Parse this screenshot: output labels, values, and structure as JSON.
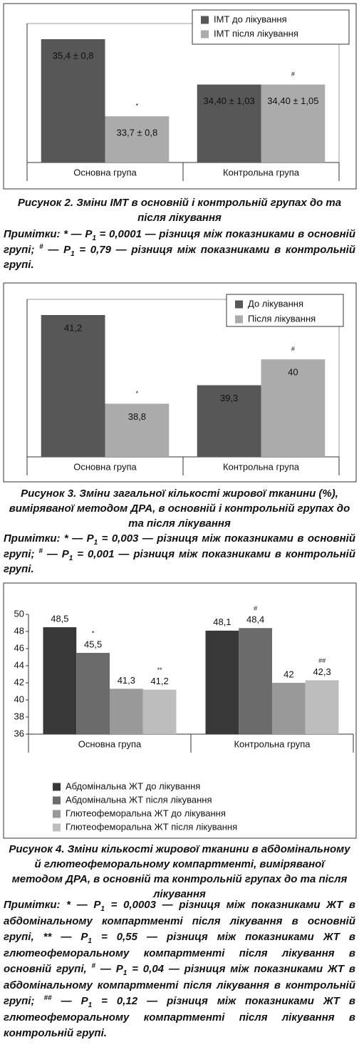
{
  "chart_data": [
    {
      "type": "bar",
      "categories": [
        "Основна група",
        "Контрольна група"
      ],
      "series": [
        {
          "name": "ІМТ до лікування",
          "color": "#575757",
          "values": [
            35.4,
            34.4
          ],
          "value_labels": [
            "35,4 ± 0,8",
            "34,40 ± 1,03"
          ]
        },
        {
          "name": "ІМТ після лікування",
          "color": "#ababab",
          "values": [
            33.7,
            34.4
          ],
          "value_labels": [
            "33,7 ± 0,8",
            "34,40 ± 1,05"
          ],
          "annotations": [
            "*",
            "#"
          ]
        }
      ]
    },
    {
      "type": "bar",
      "categories": [
        "Основна група",
        "Контрольна група"
      ],
      "series": [
        {
          "name": "До лікування",
          "color": "#575757",
          "values": [
            41.2,
            39.3
          ],
          "value_labels": [
            "41,2",
            "39,3"
          ]
        },
        {
          "name": "Після лікування",
          "color": "#ababab",
          "values": [
            38.8,
            40
          ],
          "value_labels": [
            "38,8",
            "40"
          ],
          "annotations": [
            "*",
            "#"
          ]
        }
      ]
    },
    {
      "type": "bar",
      "categories": [
        "Основна група",
        "Контрольна група"
      ],
      "ylim": [
        36,
        50
      ],
      "yticks": [
        36,
        38,
        40,
        42,
        44,
        46,
        48,
        50
      ],
      "series": [
        {
          "name": "Абдомінальна ЖТ до лікування",
          "color": "#383838",
          "values": [
            48.5,
            48.1
          ],
          "value_labels": [
            "48,5",
            "48,1"
          ]
        },
        {
          "name": "Абдомінальна ЖТ після лікування",
          "color": "#6b6b6b",
          "values": [
            45.5,
            48.4
          ],
          "value_labels": [
            "45,5",
            "48,4"
          ],
          "annotations": [
            "*",
            "#"
          ]
        },
        {
          "name": "Глютеофеморальна ЖТ до лікування",
          "color": "#999999",
          "values": [
            41.3,
            42
          ],
          "value_labels": [
            "41,3",
            "42"
          ]
        },
        {
          "name": "Глютеофеморальна ЖТ після лікування",
          "color": "#bdbdbd",
          "values": [
            41.2,
            42.3
          ],
          "value_labels": [
            "41,2",
            "42,3"
          ],
          "annotations": [
            "**",
            "##"
          ]
        }
      ]
    }
  ],
  "figures": [
    {
      "caption": "Рисунок 2. Зміни ІМТ в основній і контрольній групах до та після лікування",
      "notes": [
        "Примітки: * — P",
        "1",
        " = 0,0001 — різниця між показниками в основній групі; ",
        "#",
        " — P",
        "1",
        " = 0,79 — різниця між показниками в контрольній групі."
      ]
    },
    {
      "caption": "Рисунок 3. Зміни загальної кількості жирової тканини (%), виміряваної методом ДРА, в основній і контрольній групах до та після лікування",
      "notes": [
        "Примітки: * — P",
        "1",
        " = 0,003 — різниця між показниками в основній групі; ",
        "#",
        " — P",
        "1",
        " = 0,001 — різниця між показниками в контрольній групі."
      ]
    },
    {
      "caption": "Рисунок 4. Зміни кількості жирової тканини в абдомінальному й глютеофеморальному компартменті, виміряваної методом ДРА, в основній та контрольній групах до та після лікування",
      "notes": [
        "Примітки: * — P",
        "1",
        " = 0,0003 — різниця між показниками ЖТ в абдомінальному компартменті після лікування в основній групі, ** — P",
        "1",
        " = 0,55 — різниця між показниками ЖТ в глютеофеморальному компартменті після лікування в основній групі, ",
        "#",
        " — P",
        "1",
        " = 0,04 — різниця між показниками ЖТ в абдомінальному компартменті після лікування в контрольній групі; ",
        "##",
        " — P",
        "1",
        " = 0,12 — різниця між показниками ЖТ в глютеофеморальному компартменті після лікування в контрольній групі."
      ]
    }
  ]
}
